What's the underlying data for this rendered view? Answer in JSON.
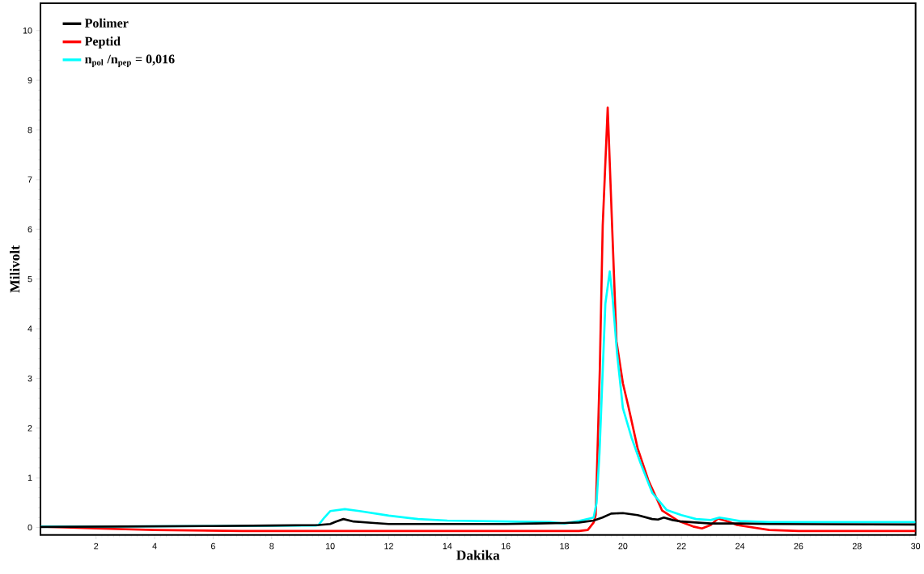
{
  "chart_data": {
    "type": "line",
    "xlabel": "Dakika",
    "ylabel": "Milivolt",
    "xlim": [
      0.1,
      30
    ],
    "ylim": [
      -0.15,
      10.55
    ],
    "xticks": [
      2,
      4,
      6,
      8,
      10,
      12,
      14,
      16,
      18,
      20,
      22,
      24,
      26,
      28,
      30
    ],
    "yticks": [
      0,
      1,
      2,
      3,
      4,
      5,
      6,
      7,
      8,
      9,
      10
    ],
    "legend": "top left",
    "marker": "none",
    "line_style": "solid",
    "series": [
      {
        "name": "Polimer",
        "color": "#000000",
        "x": [
          0.1,
          6,
          8,
          9.6,
          10.0,
          10.2,
          10.45,
          10.8,
          11.5,
          12,
          16,
          17,
          18,
          18.5,
          19.0,
          19.3,
          19.6,
          20.0,
          20.5,
          21.0,
          21.2,
          21.4,
          21.7,
          22,
          23,
          24,
          25,
          30
        ],
        "values": [
          0.01,
          0.03,
          0.04,
          0.05,
          0.07,
          0.12,
          0.17,
          0.12,
          0.09,
          0.07,
          0.07,
          0.08,
          0.09,
          0.1,
          0.14,
          0.2,
          0.28,
          0.29,
          0.25,
          0.17,
          0.16,
          0.2,
          0.15,
          0.12,
          0.08,
          0.08,
          0.07,
          0.06
        ]
      },
      {
        "name": "Peptid",
        "color": "#ff0000",
        "x": [
          0.1,
          2,
          4,
          7,
          18.5,
          18.8,
          19.0,
          19.07,
          19.21,
          19.31,
          19.48,
          19.63,
          19.78,
          20.0,
          20.2,
          20.5,
          20.87,
          21.34,
          21.9,
          22.4,
          22.7,
          23.0,
          23.25,
          23.6,
          23.9,
          25,
          26,
          30
        ],
        "values": [
          0.02,
          -0.02,
          -0.05,
          -0.07,
          -0.07,
          -0.05,
          0.1,
          0.25,
          3.17,
          6.08,
          8.45,
          6.08,
          3.75,
          2.9,
          2.4,
          1.6,
          0.95,
          0.34,
          0.13,
          0.02,
          -0.02,
          0.05,
          0.18,
          0.12,
          0.05,
          -0.05,
          -0.07,
          -0.07
        ]
      },
      {
        "name": "n$_{pol}$ /n$_{pep}$ = 0,016",
        "color": "#00ffff",
        "x": [
          0.1,
          2.5,
          9.5,
          9.6,
          9.8,
          10.0,
          10.5,
          11,
          12,
          13,
          14,
          16,
          17.5,
          18,
          18.5,
          19.0,
          19.1,
          19.2,
          19.3,
          19.4,
          19.55,
          19.65,
          19.8,
          20.0,
          20.3,
          20.6,
          21.0,
          21.5,
          22,
          22.5,
          23.0,
          23.3,
          23.6,
          24,
          25,
          30
        ],
        "values": [
          0.02,
          0.02,
          0.04,
          0.05,
          0.2,
          0.33,
          0.37,
          0.33,
          0.24,
          0.17,
          0.14,
          0.12,
          0.11,
          0.08,
          0.13,
          0.2,
          0.5,
          1.5,
          3.0,
          4.5,
          5.15,
          4.6,
          3.5,
          2.4,
          1.8,
          1.3,
          0.7,
          0.35,
          0.25,
          0.17,
          0.15,
          0.2,
          0.17,
          0.13,
          0.11,
          0.11
        ]
      }
    ]
  }
}
